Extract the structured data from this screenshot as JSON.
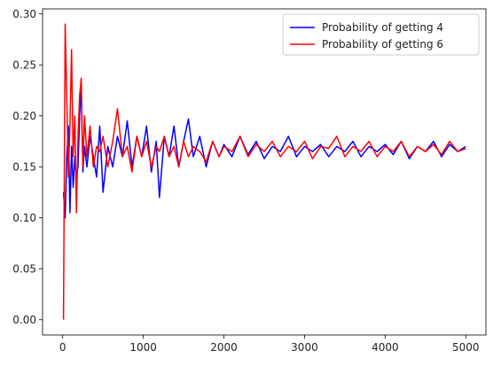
{
  "chart_data": {
    "type": "line",
    "title": "",
    "xlabel": "",
    "ylabel": "",
    "xlim": [
      -250,
      5250
    ],
    "ylim": [
      -0.015,
      0.305
    ],
    "xticks": [
      0,
      1000,
      2000,
      3000,
      4000,
      5000
    ],
    "xtick_labels": [
      "0",
      "1000",
      "2000",
      "3000",
      "4000",
      "5000"
    ],
    "yticks": [
      0.0,
      0.05,
      0.1,
      0.15,
      0.2,
      0.25,
      0.3
    ],
    "ytick_labels": [
      "0.00",
      "0.05",
      "0.10",
      "0.15",
      "0.20",
      "0.25",
      "0.30"
    ],
    "grid": false,
    "legend_position": "top-right",
    "series": [
      {
        "name": "Probability of getting 4",
        "color": "#0000ff",
        "x": [
          10,
          30,
          50,
          70,
          90,
          110,
          130,
          150,
          170,
          190,
          210,
          230,
          250,
          270,
          300,
          340,
          380,
          420,
          460,
          500,
          560,
          620,
          680,
          740,
          800,
          860,
          920,
          980,
          1040,
          1100,
          1160,
          1200,
          1260,
          1320,
          1380,
          1440,
          1500,
          1560,
          1620,
          1700,
          1780,
          1860,
          1940,
          2000,
          2100,
          2200,
          2300,
          2400,
          2500,
          2600,
          2700,
          2800,
          2900,
          3000,
          3100,
          3200,
          3300,
          3400,
          3500,
          3600,
          3700,
          3800,
          3900,
          4000,
          4100,
          4200,
          4300,
          4400,
          4500,
          4600,
          4700,
          4800,
          4900,
          5000
        ],
        "values": [
          0.125,
          0.1,
          0.16,
          0.19,
          0.105,
          0.17,
          0.13,
          0.16,
          0.14,
          0.15,
          0.2,
          0.23,
          0.145,
          0.17,
          0.15,
          0.18,
          0.16,
          0.14,
          0.19,
          0.125,
          0.17,
          0.15,
          0.18,
          0.16,
          0.195,
          0.15,
          0.18,
          0.16,
          0.19,
          0.145,
          0.175,
          0.12,
          0.18,
          0.16,
          0.19,
          0.15,
          0.175,
          0.197,
          0.16,
          0.18,
          0.15,
          0.175,
          0.16,
          0.172,
          0.16,
          0.18,
          0.162,
          0.175,
          0.158,
          0.17,
          0.165,
          0.18,
          0.16,
          0.17,
          0.165,
          0.172,
          0.16,
          0.17,
          0.165,
          0.175,
          0.16,
          0.17,
          0.165,
          0.172,
          0.162,
          0.175,
          0.158,
          0.17,
          0.165,
          0.175,
          0.16,
          0.172,
          0.165,
          0.17
        ]
      },
      {
        "name": "Probability of getting 6",
        "color": "#ff0000",
        "x": [
          10,
          30,
          50,
          70,
          90,
          110,
          130,
          150,
          170,
          190,
          210,
          230,
          250,
          270,
          300,
          340,
          380,
          420,
          460,
          500,
          560,
          620,
          680,
          740,
          800,
          860,
          920,
          980,
          1040,
          1100,
          1160,
          1200,
          1260,
          1320,
          1380,
          1440,
          1500,
          1560,
          1620,
          1700,
          1780,
          1860,
          1940,
          2000,
          2100,
          2200,
          2300,
          2400,
          2500,
          2600,
          2700,
          2800,
          2900,
          3000,
          3100,
          3200,
          3300,
          3400,
          3500,
          3600,
          3700,
          3800,
          3900,
          4000,
          4100,
          4200,
          4300,
          4400,
          4500,
          4600,
          4700,
          4800,
          4900,
          5000
        ],
        "values": [
          0.0,
          0.29,
          0.22,
          0.14,
          0.19,
          0.265,
          0.16,
          0.2,
          0.105,
          0.18,
          0.22,
          0.237,
          0.15,
          0.2,
          0.16,
          0.19,
          0.15,
          0.17,
          0.165,
          0.18,
          0.15,
          0.175,
          0.207,
          0.16,
          0.17,
          0.145,
          0.18,
          0.16,
          0.175,
          0.15,
          0.17,
          0.165,
          0.18,
          0.16,
          0.17,
          0.15,
          0.175,
          0.16,
          0.17,
          0.165,
          0.155,
          0.175,
          0.16,
          0.17,
          0.165,
          0.18,
          0.16,
          0.172,
          0.165,
          0.175,
          0.16,
          0.17,
          0.165,
          0.175,
          0.158,
          0.17,
          0.168,
          0.18,
          0.16,
          0.17,
          0.165,
          0.175,
          0.16,
          0.17,
          0.165,
          0.175,
          0.16,
          0.17,
          0.165,
          0.172,
          0.162,
          0.175,
          0.165,
          0.168
        ]
      }
    ]
  }
}
